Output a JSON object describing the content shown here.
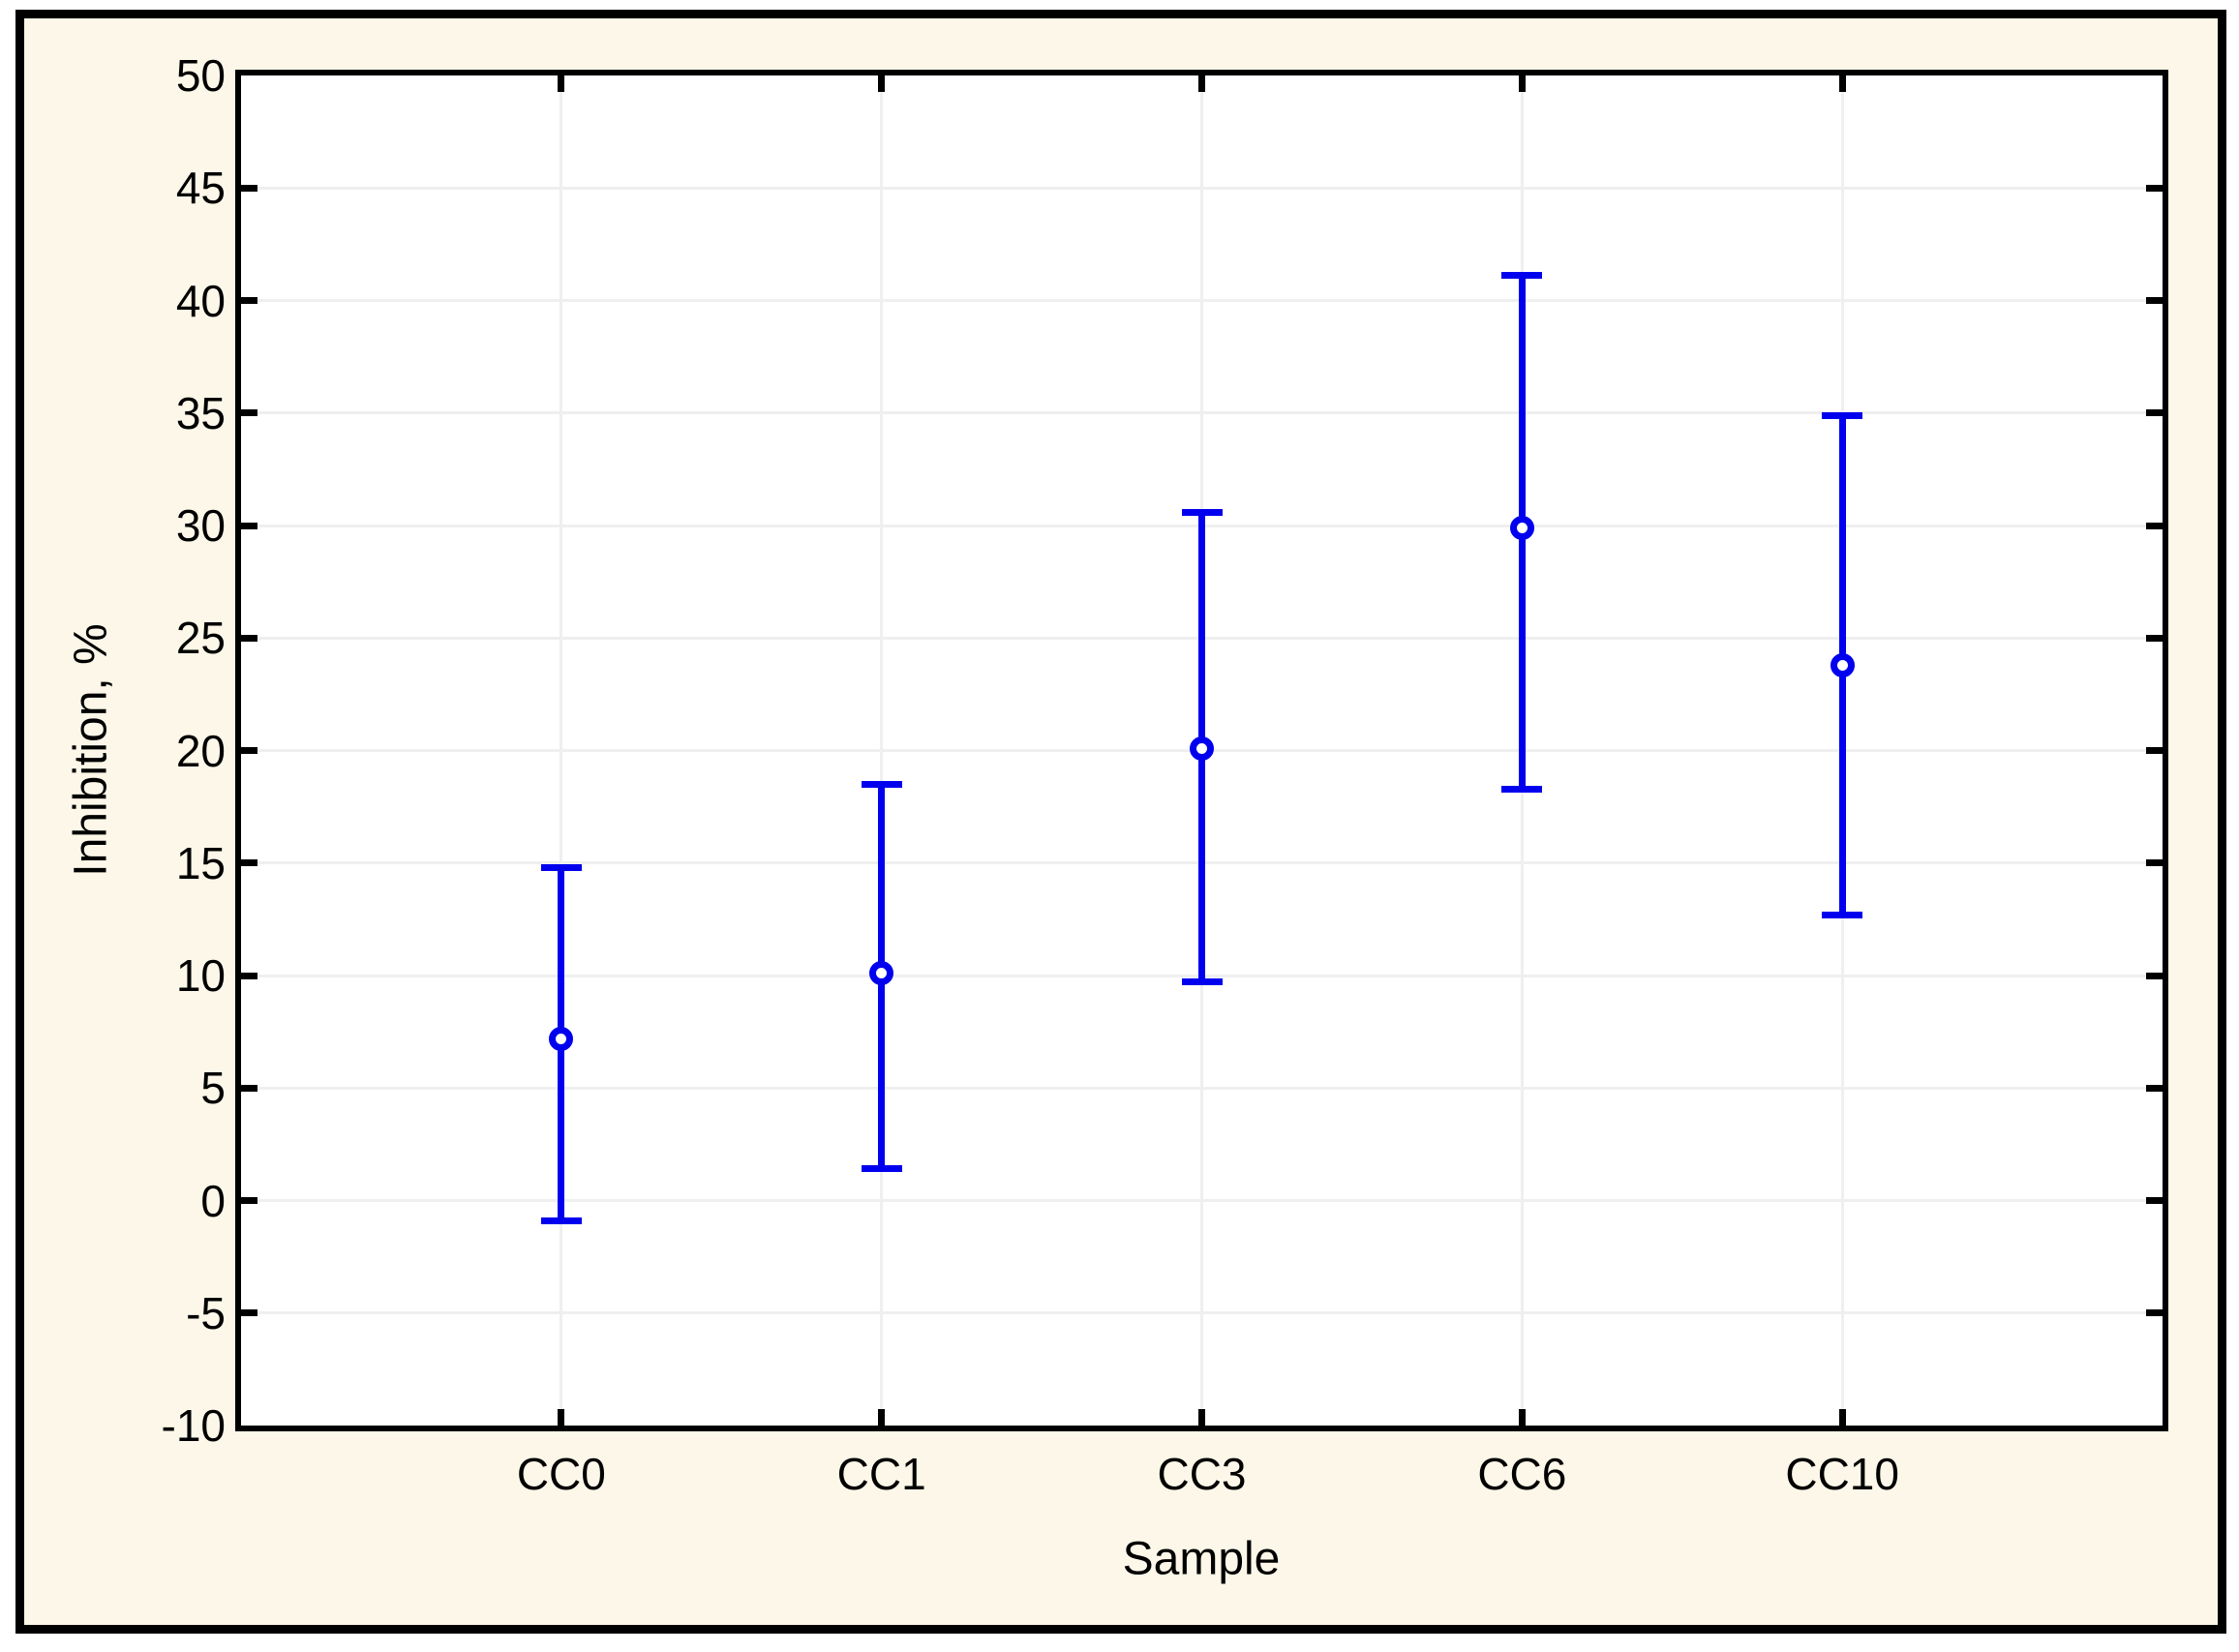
{
  "figure": {
    "background_color": "#FCF7E8",
    "frame_color": "#000000",
    "plot_background_color": "#FFFFFF",
    "grid_color": "#EFEFEF",
    "axis_color": "#000000",
    "series_color": "#0000EE",
    "text_color": "#000000"
  },
  "chart_data": {
    "type": "errorbar",
    "title": "",
    "xlabel": "Sample",
    "ylabel": "Inhibition, %",
    "categories": [
      "CC0",
      "CC1",
      "CC3",
      "CC6",
      "CC10"
    ],
    "series": [
      {
        "name": "mean",
        "marker": "open-circle",
        "values": [
          7.2,
          10.1,
          20.1,
          29.9,
          23.8
        ]
      },
      {
        "name": "upper-whisker",
        "marker": "cap",
        "values": [
          14.8,
          18.5,
          30.6,
          41.1,
          34.9
        ]
      },
      {
        "name": "lower-whisker",
        "marker": "cap",
        "values": [
          -0.9,
          1.4,
          9.7,
          18.3,
          12.7
        ]
      }
    ],
    "ylim": [
      -10,
      50
    ],
    "ytick_step": 5,
    "y_tick_labels": [
      "50",
      "45",
      "40",
      "35",
      "30",
      "25",
      "20",
      "15",
      "10",
      "5",
      "0",
      "-5",
      "-10"
    ],
    "grid": true,
    "legend": false,
    "legend_position": "none"
  }
}
